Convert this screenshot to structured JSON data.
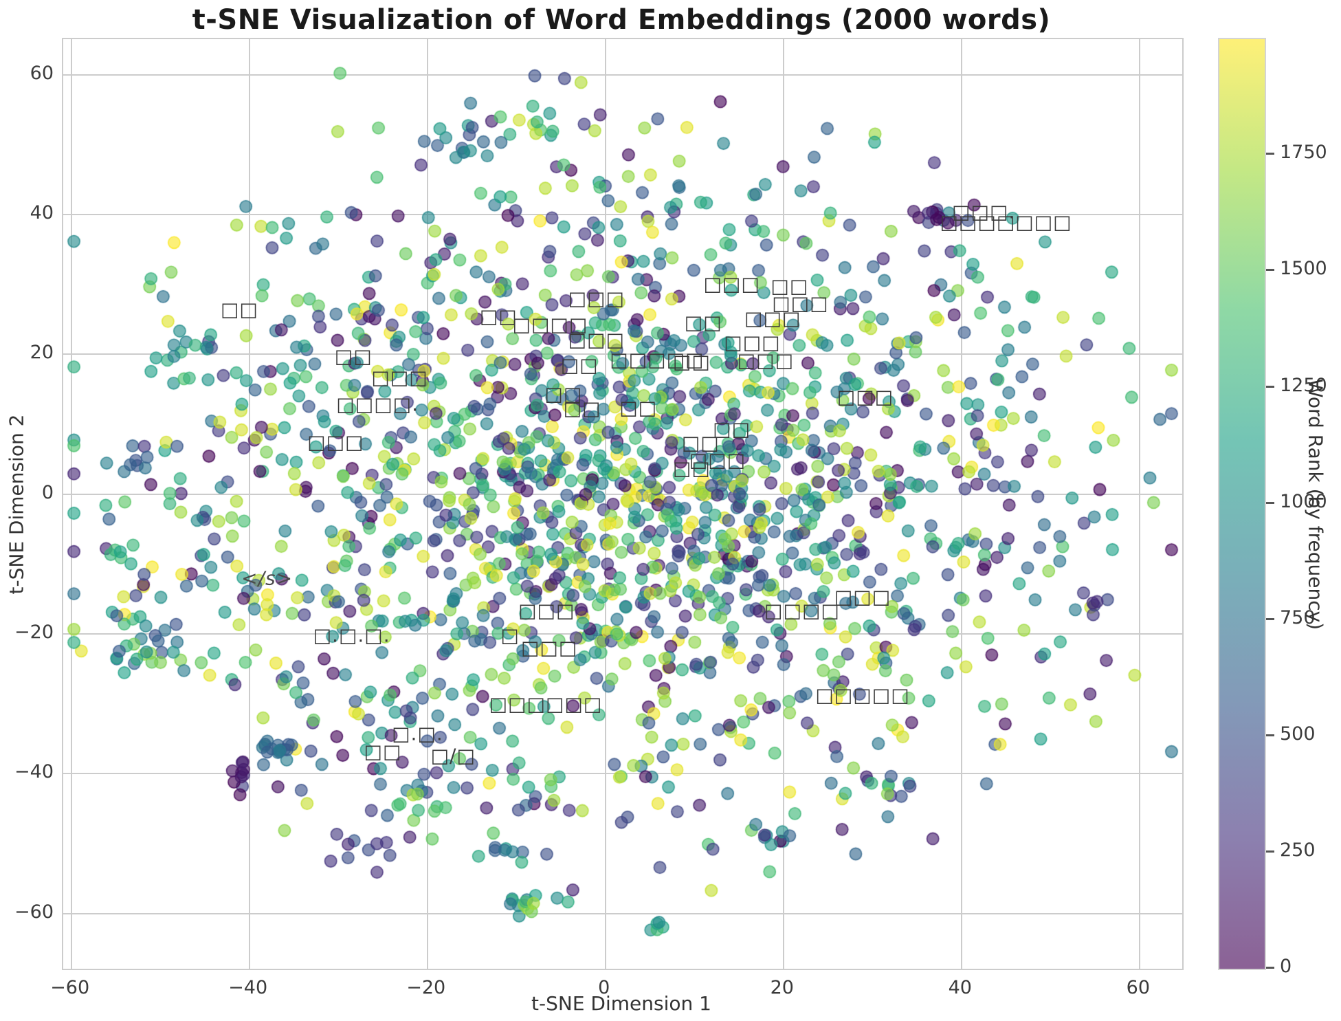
{
  "chart_data": {
    "type": "scatter",
    "title": "t-SNE Visualization of Word Embeddings (2000 words)",
    "xlabel": "t-SNE Dimension 1",
    "ylabel": "t-SNE Dimension 2",
    "n_points": 2000,
    "xlim": [
      -60.9,
      64.8
    ],
    "ylim": [
      -67.9,
      65.1
    ],
    "grid": true,
    "x_ticks": {
      "values": [
        -60,
        -40,
        -20,
        0,
        20,
        40,
        60
      ],
      "labels": [
        "−60",
        "−40",
        "−20",
        "0",
        "20",
        "40",
        "60"
      ]
    },
    "y_ticks": {
      "values": [
        -60,
        -40,
        -20,
        0,
        20,
        40,
        60
      ],
      "labels": [
        "−60",
        "−40",
        "−20",
        "0",
        "20",
        "40",
        "60"
      ]
    },
    "colorbar": {
      "label": "Word Rank (by frequency)",
      "vmin": 0,
      "vmax": 1999,
      "ticks": [
        0,
        250,
        500,
        750,
        1000,
        1250,
        1500,
        1750
      ],
      "alpha": 0.62,
      "colormap_name": "viridis",
      "colormap_stops": [
        [
          0.0,
          "#440154"
        ],
        [
          0.14,
          "#46327e"
        ],
        [
          0.29,
          "#365c8d"
        ],
        [
          0.43,
          "#277f8e"
        ],
        [
          0.57,
          "#1fa187"
        ],
        [
          0.71,
          "#4ac16d"
        ],
        [
          0.86,
          "#a0da39"
        ],
        [
          1.0,
          "#fde725"
        ]
      ]
    },
    "marker": {
      "radius_px": 8.6,
      "fill_alpha": 0.62,
      "edge_alpha": 0.85
    },
    "annotations": [
      {
        "text": "□□□.",
        "x": 42.5,
        "y": 40.3
      },
      {
        "text": "□□□□□□□",
        "x": 45.0,
        "y": 38.8
      },
      {
        "text": "□□",
        "x": -41.1,
        "y": 26.3
      },
      {
        "text": "□□",
        "x": -12.0,
        "y": 25.4
      },
      {
        "text": "□□□□",
        "x": -6.2,
        "y": 24.2
      },
      {
        "text": "□□□",
        "x": -1.0,
        "y": 27.9
      },
      {
        "text": "□□□",
        "x": -1.0,
        "y": 22.0
      },
      {
        "text": "□□",
        "x": -2.9,
        "y": 18.4
      },
      {
        "text": "□□□□□",
        "x": 5.8,
        "y": 19.2
      },
      {
        "text": "□□",
        "x": 9.7,
        "y": 18.9
      },
      {
        "text": "□□□",
        "x": 14.2,
        "y": 30.0
      },
      {
        "text": "□□",
        "x": 20.7,
        "y": 29.7
      },
      {
        "text": "□□□",
        "x": 21.9,
        "y": 27.2
      },
      {
        "text": "□□",
        "x": 11.0,
        "y": 24.5
      },
      {
        "text": "□□□",
        "x": 18.8,
        "y": 25.1
      },
      {
        "text": "□□□",
        "x": 16.5,
        "y": 21.6
      },
      {
        "text": "□□□",
        "x": 18.0,
        "y": 19.1
      },
      {
        "text": "□□",
        "x": -28.3,
        "y": 19.7
      },
      {
        "text": "□□□",
        "x": -23.1,
        "y": 16.6
      },
      {
        "text": "□□□□.",
        "x": -25.6,
        "y": 12.8
      },
      {
        "text": "□□□",
        "x": -30.3,
        "y": 7.4
      },
      {
        "text": "□□",
        "x": -4.7,
        "y": 14.2
      },
      {
        "text": "□□",
        "x": -2.6,
        "y": 12.2
      },
      {
        "text": "□□",
        "x": 3.7,
        "y": 12.3
      },
      {
        "text": "□□",
        "x": 14.2,
        "y": 9.2
      },
      {
        "text": "□□",
        "x": 10.7,
        "y": 7.3
      },
      {
        "text": "□□□",
        "x": 12.6,
        "y": 4.8
      },
      {
        "text": "□□",
        "x": 9.7,
        "y": 3.6
      },
      {
        "text": "□□□",
        "x": 29.2,
        "y": 13.8
      },
      {
        "text": "</s>",
        "x": -38.0,
        "y": -12.1,
        "italic": true
      },
      {
        "text": "□.□.□.",
        "x": -28.5,
        "y": -20.3
      },
      {
        "text": "□□□",
        "x": -6.6,
        "y": -16.7
      },
      {
        "text": "□",
        "x": -10.7,
        "y": -20.3
      },
      {
        "text": "□□□",
        "x": -6.3,
        "y": -22.1
      },
      {
        "text": "□□□□",
        "x": 22.1,
        "y": -16.7
      },
      {
        "text": "□□□",
        "x": 28.9,
        "y": -14.8
      },
      {
        "text": "□□□□□□",
        "x": -6.7,
        "y": -30.1
      },
      {
        "text": "□□□□□",
        "x": 28.9,
        "y": -28.8
      },
      {
        "text": "□.□.",
        "x": -21.1,
        "y": -34.4
      },
      {
        "text": "□□",
        "x": -25.0,
        "y": -36.9
      },
      {
        "text": "□/□",
        "x": -17.1,
        "y": -37.5
      }
    ],
    "points_spec": {
      "seed": 42,
      "jitter": 2.2,
      "clusters": [
        {
          "n": 1350,
          "cx": 1.5,
          "cy": 0.5,
          "sx": 21,
          "sy": 18,
          "rank": [
            0,
            1999
          ]
        },
        {
          "n": 148,
          "ring": true,
          "cx": 1,
          "cy": -1,
          "r0": 30,
          "r1": 44,
          "rank": [
            0,
            1999
          ]
        },
        {
          "n": 260,
          "ring": true,
          "cx": 1,
          "cy": -1,
          "r0": 40,
          "r1": 55,
          "rank": [
            0,
            1999
          ]
        },
        {
          "n": 60,
          "ring": true,
          "cx": 0,
          "cy": 0,
          "r0": 55,
          "r1": 63,
          "rank": [
            0,
            1999
          ]
        },
        {
          "n": 26,
          "cx": -51,
          "cy": -22.5,
          "sx": 2.6,
          "sy": 2.2,
          "rank": [
            500,
            1700
          ]
        },
        {
          "n": 16,
          "cx": -36.5,
          "cy": -36.8,
          "sx": 1.7,
          "sy": 1.1,
          "rank": [
            450,
            850
          ]
        },
        {
          "n": 9,
          "cx": -41,
          "cy": -40,
          "sx": 0.6,
          "sy": 1.1,
          "rank": [
            0,
            260
          ]
        },
        {
          "n": 11,
          "cx": -26,
          "cy": -50.5,
          "sx": 1.8,
          "sy": 1.4,
          "rank": [
            150,
            650
          ]
        },
        {
          "n": 13,
          "cx": -9,
          "cy": -58.3,
          "sx": 2.4,
          "sy": 0.8,
          "rank": [
            700,
            1999
          ]
        },
        {
          "n": 5,
          "cx": 5.5,
          "cy": -62,
          "sx": 1.0,
          "sy": 0.5,
          "rank": [
            900,
            1400
          ]
        },
        {
          "n": 7,
          "cx": 20,
          "cy": -49,
          "sx": 1.5,
          "sy": 1.0,
          "rank": [
            300,
            1300
          ]
        },
        {
          "n": 14,
          "cx": -16,
          "cy": 50.5,
          "sx": 2.6,
          "sy": 1.6,
          "rank": [
            350,
            1200
          ]
        },
        {
          "n": 8,
          "cx": -8.5,
          "cy": 53.5,
          "sx": 1.5,
          "sy": 1.2,
          "rank": [
            900,
            1900
          ]
        },
        {
          "n": 13,
          "cx": 37.5,
          "cy": 39.8,
          "sx": 1.6,
          "sy": 0.9,
          "rank": [
            0,
            900
          ]
        },
        {
          "n": 6,
          "cx": 55,
          "cy": -15.5,
          "sx": 0.8,
          "sy": 1.0,
          "rank": [
            150,
            550
          ]
        },
        {
          "n": 6,
          "cx": -54.5,
          "cy": -8.6,
          "sx": 1.5,
          "sy": 0.5,
          "rank": [
            1100,
            1600
          ]
        },
        {
          "n": 8,
          "cx": -52.5,
          "cy": 4.5,
          "sx": 1.5,
          "sy": 1.3,
          "rank": [
            300,
            800
          ]
        },
        {
          "n": 10,
          "cx": -46,
          "cy": 20.5,
          "sx": 1.8,
          "sy": 1.5,
          "rank": [
            400,
            1500
          ]
        },
        {
          "n": 12,
          "cx": 30.5,
          "cy": -41.5,
          "sx": 2.2,
          "sy": 1.6,
          "rank": [
            200,
            1700
          ]
        },
        {
          "n": 10,
          "cx": -20.5,
          "cy": -44.5,
          "sx": 2.0,
          "sy": 1.5,
          "rank": [
            600,
            1700
          ]
        },
        {
          "n": 8,
          "cx": -11,
          "cy": -51.5,
          "sx": 1.6,
          "sy": 1.2,
          "rank": [
            300,
            1300
          ]
        }
      ]
    }
  }
}
